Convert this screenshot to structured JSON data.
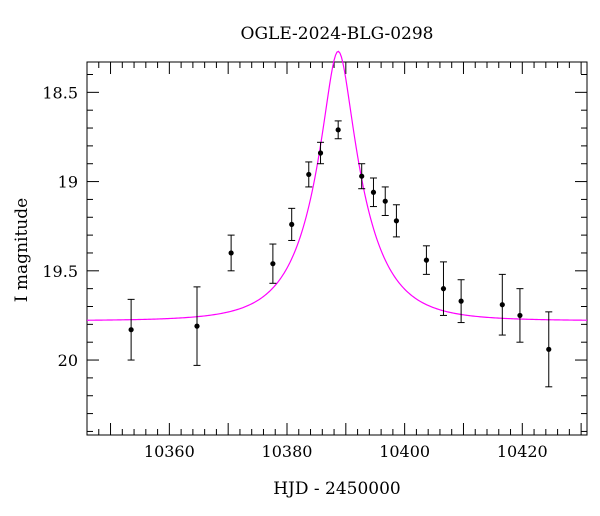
{
  "chart_data": {
    "type": "scatter",
    "title": "OGLE-2024-BLG-0298",
    "xlabel": "HJD - 2450000",
    "ylabel": "I magnitude",
    "xlim": [
      10346,
      10431
    ],
    "ylim": [
      20.42,
      18.33
    ],
    "y_inverted": true,
    "grid": false,
    "x_ticks": [
      10360,
      10380,
      10400,
      10420
    ],
    "x_tick_labels": [
      "10360",
      "10380",
      "10400",
      "10420"
    ],
    "y_ticks": [
      18.5,
      19,
      19.5,
      20
    ],
    "y_tick_labels": [
      "18.5",
      "19",
      "19.5",
      "20"
    ],
    "points": [
      {
        "x": 10353.5,
        "y": 19.83,
        "err": 0.17
      },
      {
        "x": 10364.7,
        "y": 19.81,
        "err": 0.22
      },
      {
        "x": 10370.5,
        "y": 19.4,
        "err": 0.1
      },
      {
        "x": 10377.6,
        "y": 19.46,
        "err": 0.11
      },
      {
        "x": 10380.8,
        "y": 19.24,
        "err": 0.09
      },
      {
        "x": 10383.7,
        "y": 18.96,
        "err": 0.07
      },
      {
        "x": 10385.7,
        "y": 18.84,
        "err": 0.06
      },
      {
        "x": 10388.7,
        "y": 18.71,
        "err": 0.05
      },
      {
        "x": 10392.7,
        "y": 18.97,
        "err": 0.07
      },
      {
        "x": 10394.7,
        "y": 19.06,
        "err": 0.08
      },
      {
        "x": 10396.7,
        "y": 19.11,
        "err": 0.08
      },
      {
        "x": 10398.6,
        "y": 19.22,
        "err": 0.09
      },
      {
        "x": 10403.7,
        "y": 19.44,
        "err": 0.08
      },
      {
        "x": 10406.6,
        "y": 19.6,
        "err": 0.15
      },
      {
        "x": 10409.6,
        "y": 19.67,
        "err": 0.12
      },
      {
        "x": 10416.6,
        "y": 19.69,
        "err": 0.17
      },
      {
        "x": 10419.6,
        "y": 19.75,
        "err": 0.15
      },
      {
        "x": 10424.5,
        "y": 19.94,
        "err": 0.21
      }
    ],
    "model": {
      "type": "microlensing-fit",
      "t0": 10388.7,
      "tE": 8.6,
      "u0": 0.255,
      "baseline_mag": 19.78,
      "blend_fraction": 1.0
    },
    "colors": {
      "points": "#000000",
      "model": "#ff00ff"
    }
  }
}
